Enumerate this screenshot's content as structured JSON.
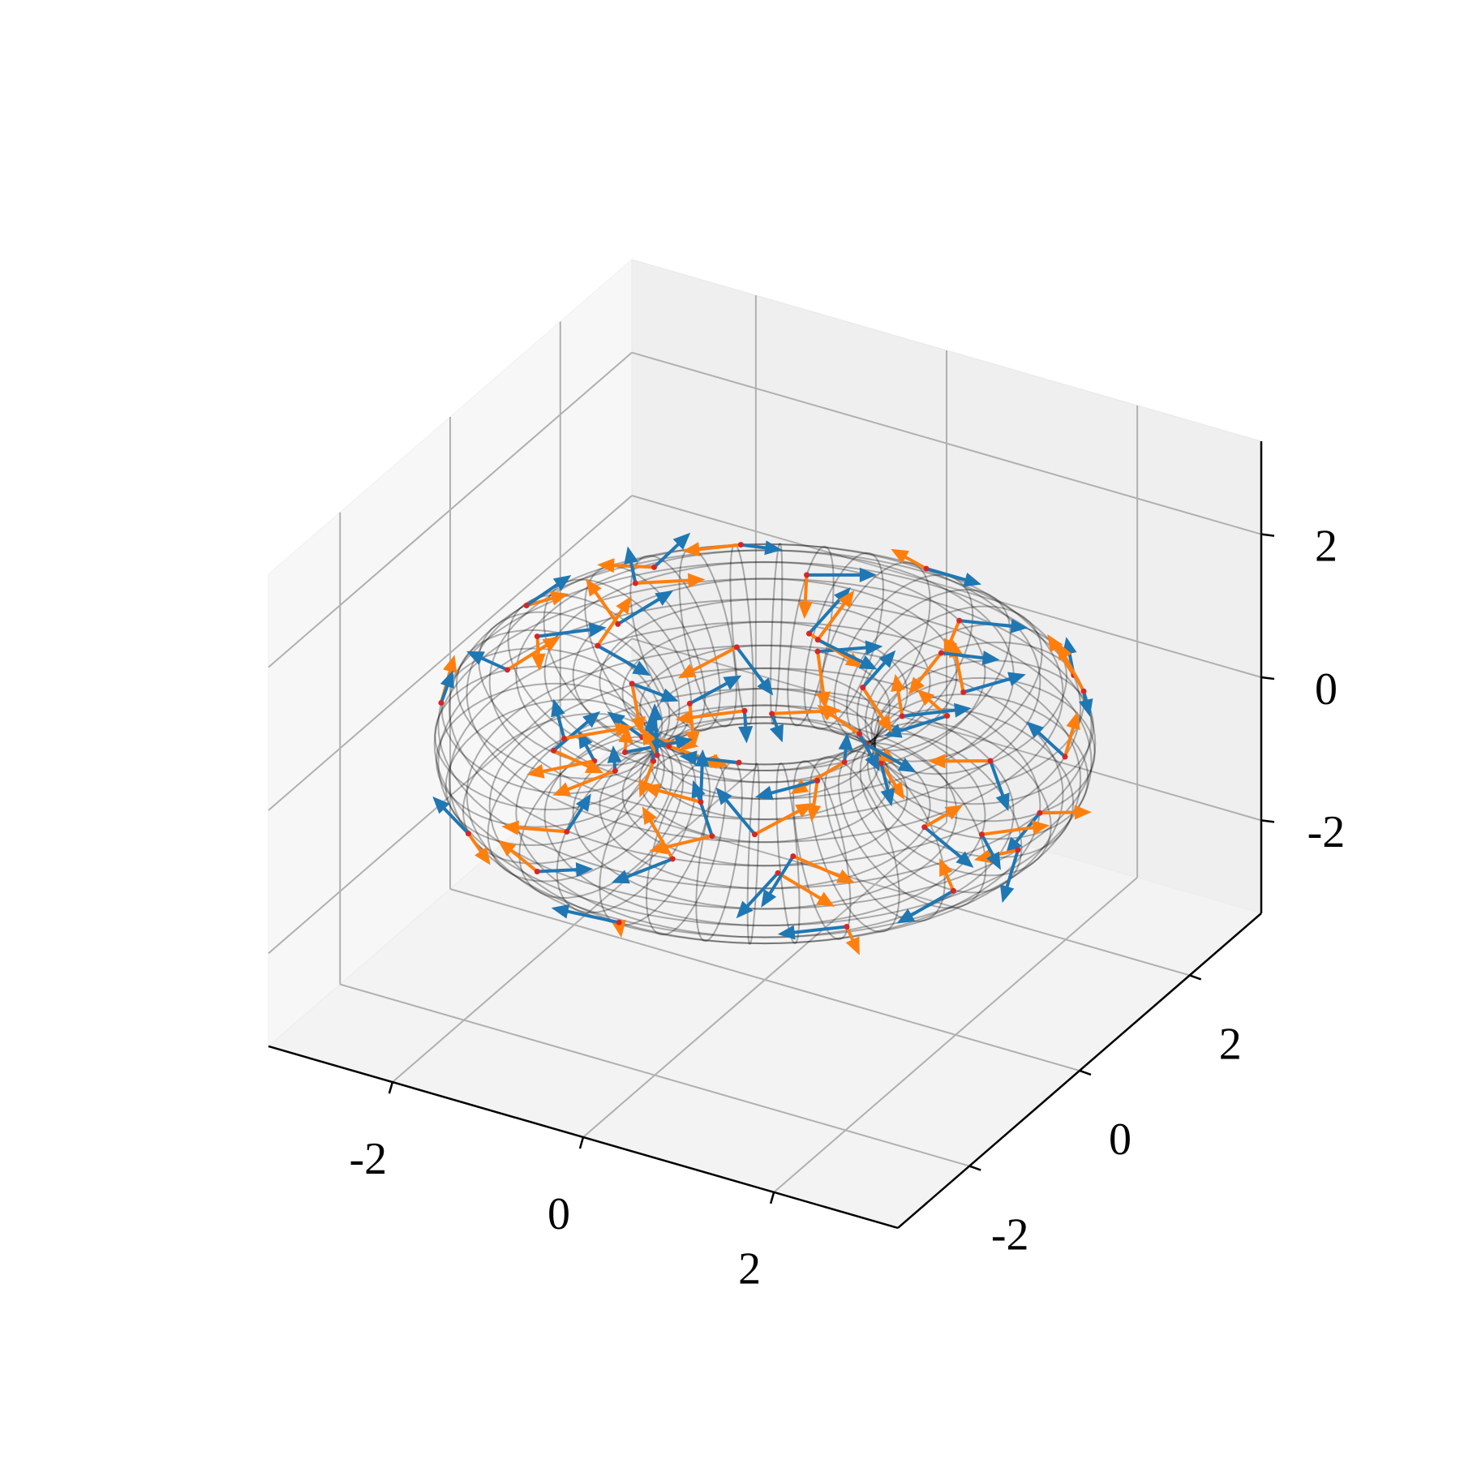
{
  "chart_data": {
    "type": "torus3d",
    "xlim": [
      -3.3,
      3.3
    ],
    "ylim": [
      -3.3,
      3.3
    ],
    "zlim": [
      -3.3,
      3.3
    ],
    "xticks": [
      -2,
      0,
      2
    ],
    "yticks": [
      -2,
      0,
      2
    ],
    "zticks": [
      -2,
      0,
      2
    ],
    "grid": true,
    "elev": 30,
    "azim": -60,
    "torus": {
      "R": 2,
      "r": 1,
      "u_lines": 40,
      "v_lines": 24,
      "color": "#000000",
      "opacity": 0.3
    },
    "point_color": "#d62728",
    "arrow_length": 0.6,
    "arrows": [
      {
        "color": "#ff7f0e",
        "offset": 0
      },
      {
        "color": "#1f77b4",
        "offset": 90
      }
    ],
    "points": {
      "u": [
        12,
        35,
        58,
        77,
        95,
        118,
        140,
        163,
        185,
        207,
        230,
        252,
        275,
        298,
        320,
        343,
        5,
        27,
        50,
        72,
        101,
        125,
        147,
        170,
        192,
        215,
        238,
        260,
        283,
        305,
        328,
        350,
        20,
        45,
        66,
        88,
        110,
        133,
        156,
        178,
        200,
        222,
        245,
        268,
        290,
        312,
        335,
        355,
        15,
        40,
        63,
        85,
        108,
        130,
        152,
        175,
        198,
        220,
        243,
        265
      ],
      "v": [
        30,
        200,
        90,
        310,
        150,
        260,
        20,
        180,
        240,
        70,
        330,
        120,
        210,
        50,
        280,
        160,
        100,
        300,
        10,
        220,
        140,
        60,
        340,
        250,
        80,
        190,
        290,
        130,
        30,
        230,
        170,
        0,
        270,
        110,
        200,
        40,
        320,
        150,
        90,
        260,
        10,
        180,
        70,
        300,
        130,
        220,
        350,
        60,
        240,
        20,
        160,
        280,
        100,
        200,
        330,
        50,
        140,
        260,
        80,
        190
      ],
      "angle": [
        15,
        80,
        140,
        45,
        110,
        170,
        25,
        95,
        60,
        130,
        5,
        75,
        150,
        35,
        100,
        165,
        50,
        120,
        10,
        85,
        155,
        30,
        70,
        140,
        20,
        105,
        175,
        55,
        125,
        40,
        90,
        160,
        65,
        135,
        0,
        80,
        115,
        25,
        150,
        45,
        95,
        170,
        10,
        60,
        130,
        35,
        110,
        145,
        20,
        75,
        160,
        50,
        100,
        5,
        140,
        85,
        30,
        120,
        65,
        175
      ]
    }
  }
}
